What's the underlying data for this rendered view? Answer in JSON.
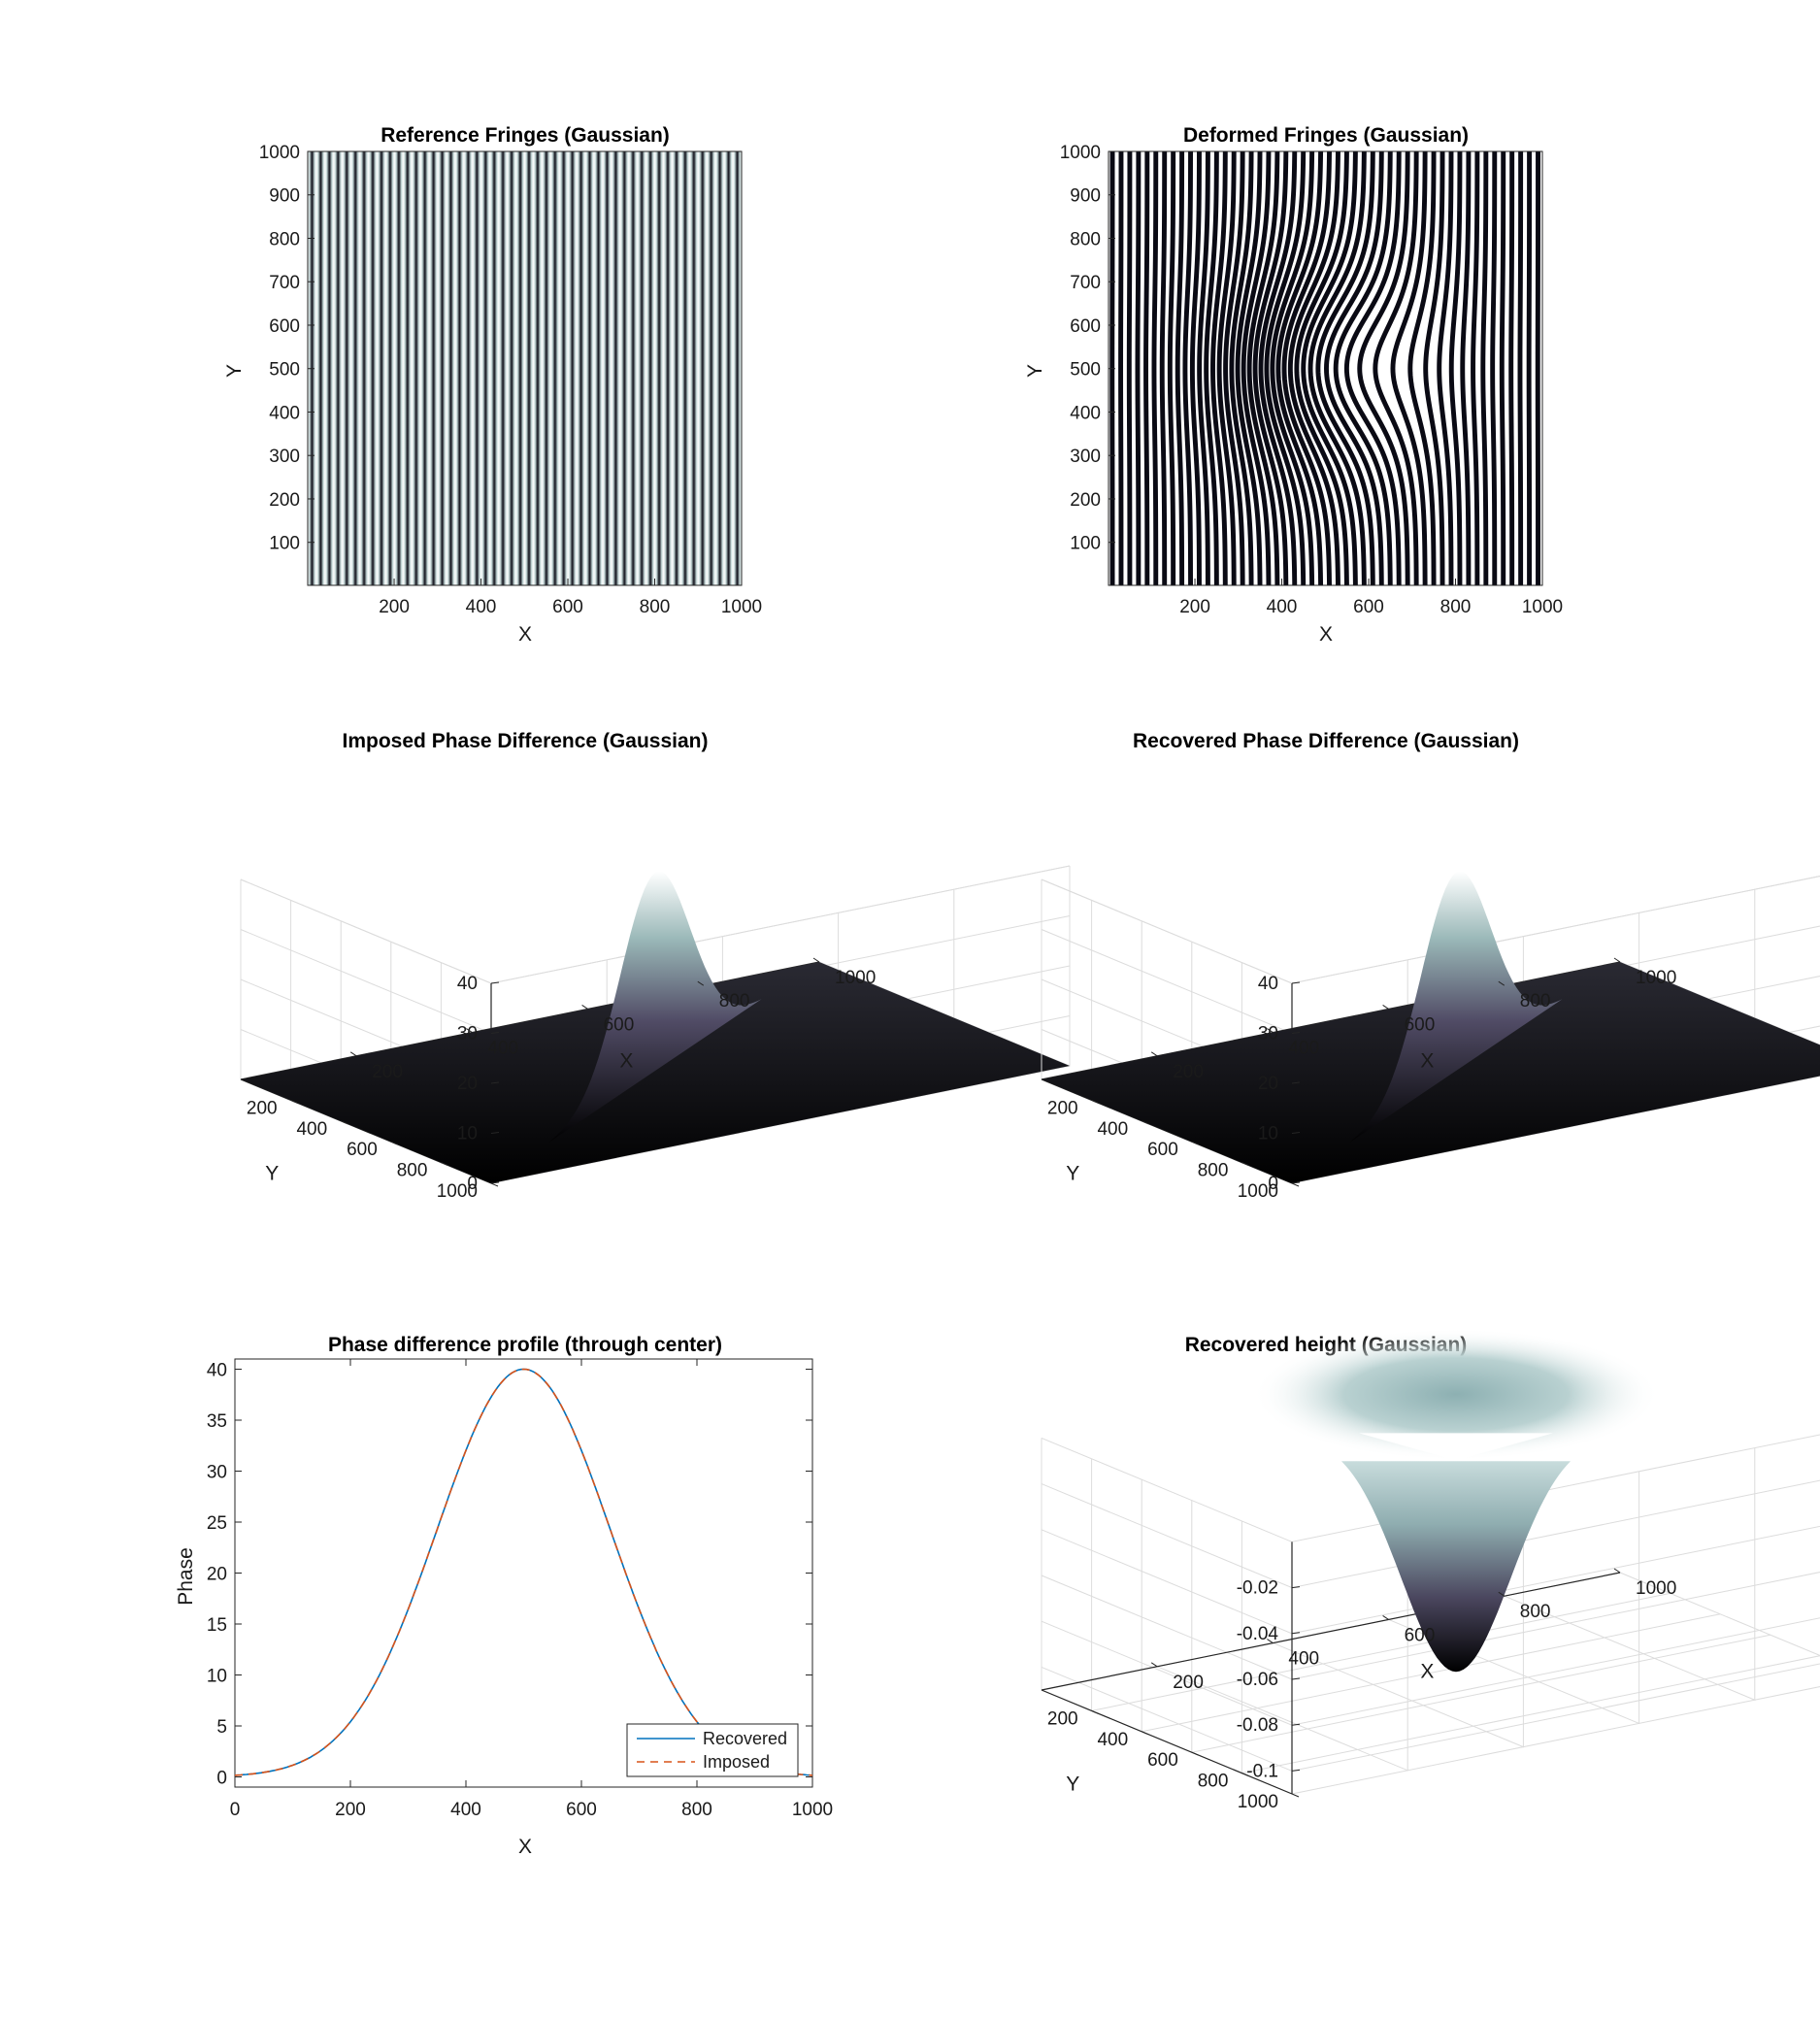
{
  "figure": {
    "colors": {
      "surface_low": "#000000",
      "surface_mid": "#5b566e",
      "surface_high": "#ffffff",
      "recovered": "#0072BD",
      "imposed": "#D95319"
    }
  },
  "chart_data": [
    {
      "id": "ref",
      "type": "heatmap",
      "title": "Reference Fringes (Gaussian)",
      "xlabel": "X",
      "ylabel": "Y",
      "xlim": [
        1,
        1000
      ],
      "ylim": [
        1,
        1000
      ],
      "xticks": [
        200,
        400,
        600,
        800,
        1000
      ],
      "yticks": [
        100,
        200,
        300,
        400,
        500,
        600,
        700,
        800,
        900,
        1000
      ],
      "colormap": "bone",
      "fringe_count": 50
    },
    {
      "id": "def",
      "type": "heatmap",
      "title": "Deformed Fringes (Gaussian)",
      "xlabel": "X",
      "ylabel": "Y",
      "xlim": [
        1,
        1000
      ],
      "ylim": [
        1,
        1000
      ],
      "xticks": [
        200,
        400,
        600,
        800,
        1000
      ],
      "yticks": [
        100,
        200,
        300,
        400,
        500,
        600,
        700,
        800,
        900,
        1000
      ],
      "colormap": "bone",
      "fringe_count": 50,
      "gaussian_phase": {
        "amplitude": 40,
        "center": [
          500,
          500
        ],
        "sigma": 150
      }
    },
    {
      "id": "imp3d",
      "type": "area",
      "title": "Imposed Phase Difference (Gaussian)",
      "xlabel": "X",
      "ylabel": "Y",
      "xticks": [
        200,
        400,
        600,
        800,
        1000
      ],
      "yticks": [
        200,
        400,
        600,
        800,
        1000
      ],
      "zticks": [
        0,
        10,
        20,
        30,
        40
      ],
      "zlim": [
        0,
        40
      ],
      "surface": {
        "amplitude": 40,
        "center": [
          500,
          500
        ],
        "sigma": 150
      },
      "colormap": "bone",
      "grid": true
    },
    {
      "id": "rec3d",
      "type": "area",
      "title": "Recovered Phase Difference (Gaussian)",
      "xlabel": "X",
      "ylabel": "Y",
      "xticks": [
        200,
        400,
        600,
        800,
        1000
      ],
      "yticks": [
        200,
        400,
        600,
        800,
        1000
      ],
      "zticks": [
        0,
        10,
        20,
        30,
        40
      ],
      "zlim": [
        0,
        40
      ],
      "surface": {
        "amplitude": 40,
        "center": [
          500,
          500
        ],
        "sigma": 150
      },
      "colormap": "bone",
      "grid": true
    },
    {
      "id": "profile",
      "type": "line",
      "title": "Phase difference profile (through center)",
      "xlabel": "X",
      "ylabel": "Phase",
      "xlim": [
        0,
        1000
      ],
      "ylim": [
        -1,
        41
      ],
      "xticks": [
        0,
        200,
        400,
        600,
        800,
        1000
      ],
      "yticks": [
        0,
        5,
        10,
        15,
        20,
        25,
        30,
        35,
        40
      ],
      "x": [
        0,
        50,
        100,
        150,
        200,
        250,
        300,
        350,
        400,
        450,
        500,
        550,
        600,
        650,
        700,
        750,
        800,
        850,
        900,
        950,
        1000
      ],
      "series": [
        {
          "name": "Recovered",
          "style": "solid",
          "values": [
            0.16,
            0.5,
            1.4,
            3.3,
            7.0,
            12.9,
            20.6,
            28.7,
            35.4,
            39.1,
            40.0,
            39.1,
            35.4,
            28.7,
            20.6,
            12.9,
            7.0,
            3.3,
            1.4,
            0.5,
            0.16
          ]
        },
        {
          "name": "Imposed",
          "style": "dashed",
          "values": [
            0.15,
            0.5,
            1.4,
            3.3,
            7.0,
            12.9,
            20.6,
            28.7,
            35.4,
            39.1,
            40.0,
            39.1,
            35.4,
            28.7,
            20.6,
            12.9,
            7.0,
            3.3,
            1.4,
            0.5,
            0.15
          ]
        }
      ],
      "legend": {
        "position": "bottom-right",
        "entries": [
          "Recovered",
          "Imposed"
        ]
      },
      "grid": false
    },
    {
      "id": "height3d",
      "type": "area",
      "title": "Recovered height  (Gaussian)",
      "xlabel": "X",
      "ylabel": "Y",
      "xticks": [
        200,
        400,
        600,
        800,
        1000
      ],
      "yticks": [
        200,
        400,
        600,
        800,
        1000
      ],
      "zticks": [
        -0.02,
        -0.04,
        -0.06,
        -0.08,
        -0.1
      ],
      "ztick_labels": [
        "-0.02",
        "-0.04",
        "-0.06",
        "-0.08",
        "-0.1"
      ],
      "zlim": [
        -0.11,
        0
      ],
      "surface": {
        "amplitude": -0.105,
        "center": [
          500,
          500
        ],
        "sigma": 150
      },
      "colormap": "bone",
      "grid": true
    }
  ]
}
